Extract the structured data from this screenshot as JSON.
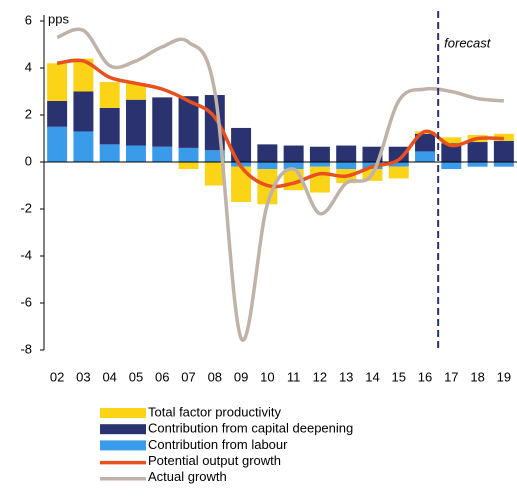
{
  "chart_data": {
    "type": "bar",
    "stacked": true,
    "y_label": "pps",
    "categories": [
      "02",
      "03",
      "04",
      "05",
      "06",
      "07",
      "08",
      "09",
      "10",
      "11",
      "12",
      "13",
      "14",
      "15",
      "16",
      "17",
      "18",
      "19"
    ],
    "series": [
      {
        "name": "Total factor productivity",
        "type": "bar",
        "color": "#fbd418",
        "values": [
          1.6,
          1.4,
          1.1,
          0.7,
          0,
          -0.3,
          -1.0,
          -1.5,
          -1.5,
          -0.9,
          -1.1,
          -0.6,
          -0.5,
          -0.5,
          0.1,
          0.25,
          0.3,
          0.3
        ]
      },
      {
        "name": "Contribution from capital deepening",
        "type": "bar",
        "color": "#2b3270",
        "values": [
          1.1,
          1.7,
          1.55,
          1.95,
          2.1,
          2.2,
          2.35,
          1.45,
          0.75,
          0.7,
          0.65,
          0.7,
          0.65,
          0.65,
          0.75,
          0.8,
          0.85,
          0.9
        ]
      },
      {
        "name": "Contribution from labour",
        "type": "bar",
        "color": "#3a9bea",
        "values": [
          1.5,
          1.3,
          0.75,
          0.7,
          0.65,
          0.6,
          0.5,
          -0.2,
          -0.3,
          -0.3,
          -0.2,
          -0.3,
          -0.3,
          -0.2,
          0.45,
          -0.3,
          -0.2,
          -0.2
        ]
      },
      {
        "name": "Potential output growth",
        "type": "line",
        "color": "#e8501e",
        "values": [
          4.2,
          4.3,
          3.6,
          3.35,
          3.1,
          2.6,
          1.9,
          -0.2,
          -1.0,
          -0.9,
          -0.5,
          -0.6,
          -0.2,
          0.1,
          1.3,
          0.7,
          1.0,
          1.0
        ]
      },
      {
        "name": "Actual growth",
        "type": "line",
        "color": "#bfb2a9",
        "values": [
          5.3,
          5.6,
          4.1,
          4.3,
          4.9,
          5.1,
          3.0,
          -7.5,
          -1.8,
          -0.3,
          -2.2,
          -0.9,
          -0.5,
          2.6,
          3.1,
          3.0,
          2.7,
          2.6
        ]
      }
    ],
    "annotation": {
      "text": "forecast",
      "from": "17"
    },
    "ylim": [
      -8,
      6
    ],
    "yticks": [
      -8,
      -6,
      -4,
      -2,
      0,
      2,
      4,
      6
    ],
    "grid": false,
    "legend": "bottom"
  }
}
